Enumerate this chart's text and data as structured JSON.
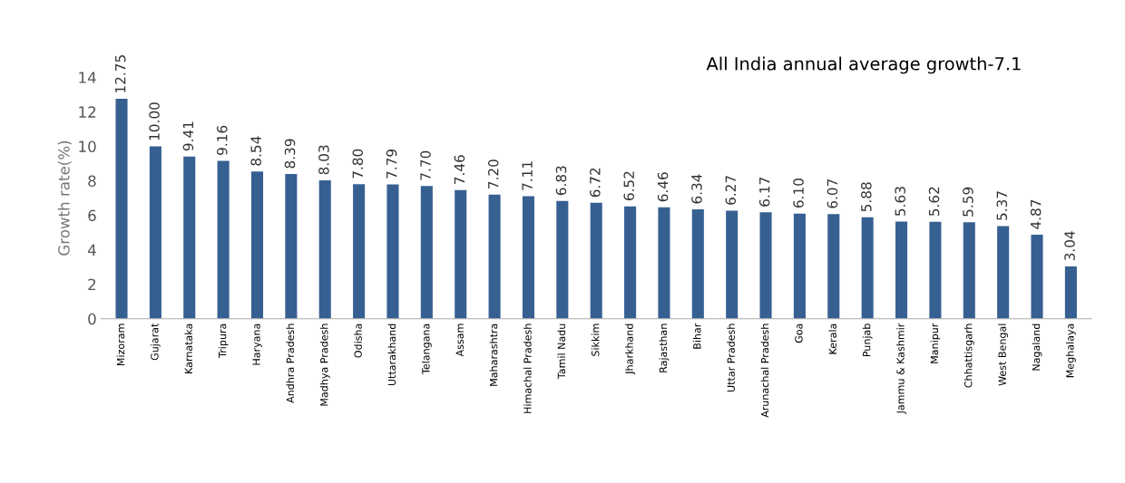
{
  "chart_data": {
    "type": "bar",
    "ylabel": "Growth rate(%)",
    "annotations": [
      "All India annual average growth-7.1"
    ],
    "categories": [
      "Mizoram",
      "Gujarat",
      "Karnataka",
      "Tripura",
      "Haryana",
      "Andhra Pradesh",
      "Madhya Pradesh",
      "Odisha",
      "Uttarakhand",
      "Telangana",
      "Assam",
      "Maharashtra",
      "Himachal Pradesh",
      "Tamil Nadu",
      "Sikkim",
      "Jharkhand",
      "Rajasthan",
      "Bihar",
      "Uttar Pradesh",
      "Arunachal Pradesh",
      "Goa",
      "Kerala",
      "Punjab",
      "Jammu & Kashmir",
      "Manipur",
      "Chhattisgarh",
      "West Bengal",
      "Nagaland",
      "Meghalaya"
    ],
    "values": [
      12.75,
      10.0,
      9.41,
      9.16,
      8.54,
      8.39,
      8.03,
      7.8,
      7.79,
      7.7,
      7.46,
      7.2,
      7.11,
      6.83,
      6.72,
      6.52,
      6.46,
      6.34,
      6.27,
      6.17,
      6.1,
      6.07,
      5.88,
      5.63,
      5.62,
      5.59,
      5.37,
      4.87,
      3.04
    ],
    "value_labels": [
      "12.75",
      "10.00",
      "9.41",
      "9.16",
      "8.54",
      "8.39",
      "8.03",
      "7.80",
      "7.79",
      "7.70",
      "7.46",
      "7.20",
      "7.11",
      "6.83",
      "6.72",
      "6.52",
      "6.46",
      "6.34",
      "6.27",
      "6.17",
      "6.10",
      "6.07",
      "5.88",
      "5.63",
      "5.62",
      "5.59",
      "5.37",
      "4.87",
      "3.04"
    ],
    "color": "#376092",
    "ylim": [
      0,
      14
    ],
    "yticks": [
      0,
      2,
      4,
      6,
      8,
      10,
      12,
      14
    ],
    "grid": false,
    "legend": false
  }
}
